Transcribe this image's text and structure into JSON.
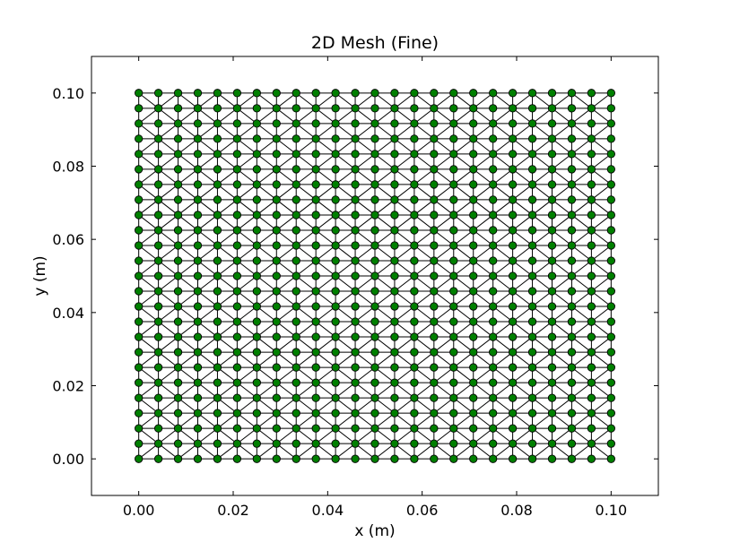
{
  "chart_data": {
    "type": "scatter",
    "title": "2D Mesh (Fine)",
    "xlabel": "x (m)",
    "ylabel": "y (m)",
    "xlim": [
      -0.01,
      0.11
    ],
    "ylim": [
      -0.01,
      0.11
    ],
    "xticks": [
      0.0,
      0.02,
      0.04,
      0.06,
      0.08,
      0.1
    ],
    "yticks": [
      0.0,
      0.02,
      0.04,
      0.06,
      0.08,
      0.1
    ],
    "xtick_labels": [
      "0.00",
      "0.02",
      "0.04",
      "0.06",
      "0.08",
      "0.10"
    ],
    "ytick_labels": [
      "0.00",
      "0.02",
      "0.04",
      "0.06",
      "0.08",
      "0.10"
    ],
    "mesh": {
      "x_range": [
        0.0,
        0.1
      ],
      "y_range": [
        0.0,
        0.1
      ],
      "nodes_x": 25,
      "nodes_y": 25,
      "element": "triangle"
    },
    "grid": false,
    "legend": "none",
    "node_color": "#007f00",
    "edge_color": "#000000"
  }
}
